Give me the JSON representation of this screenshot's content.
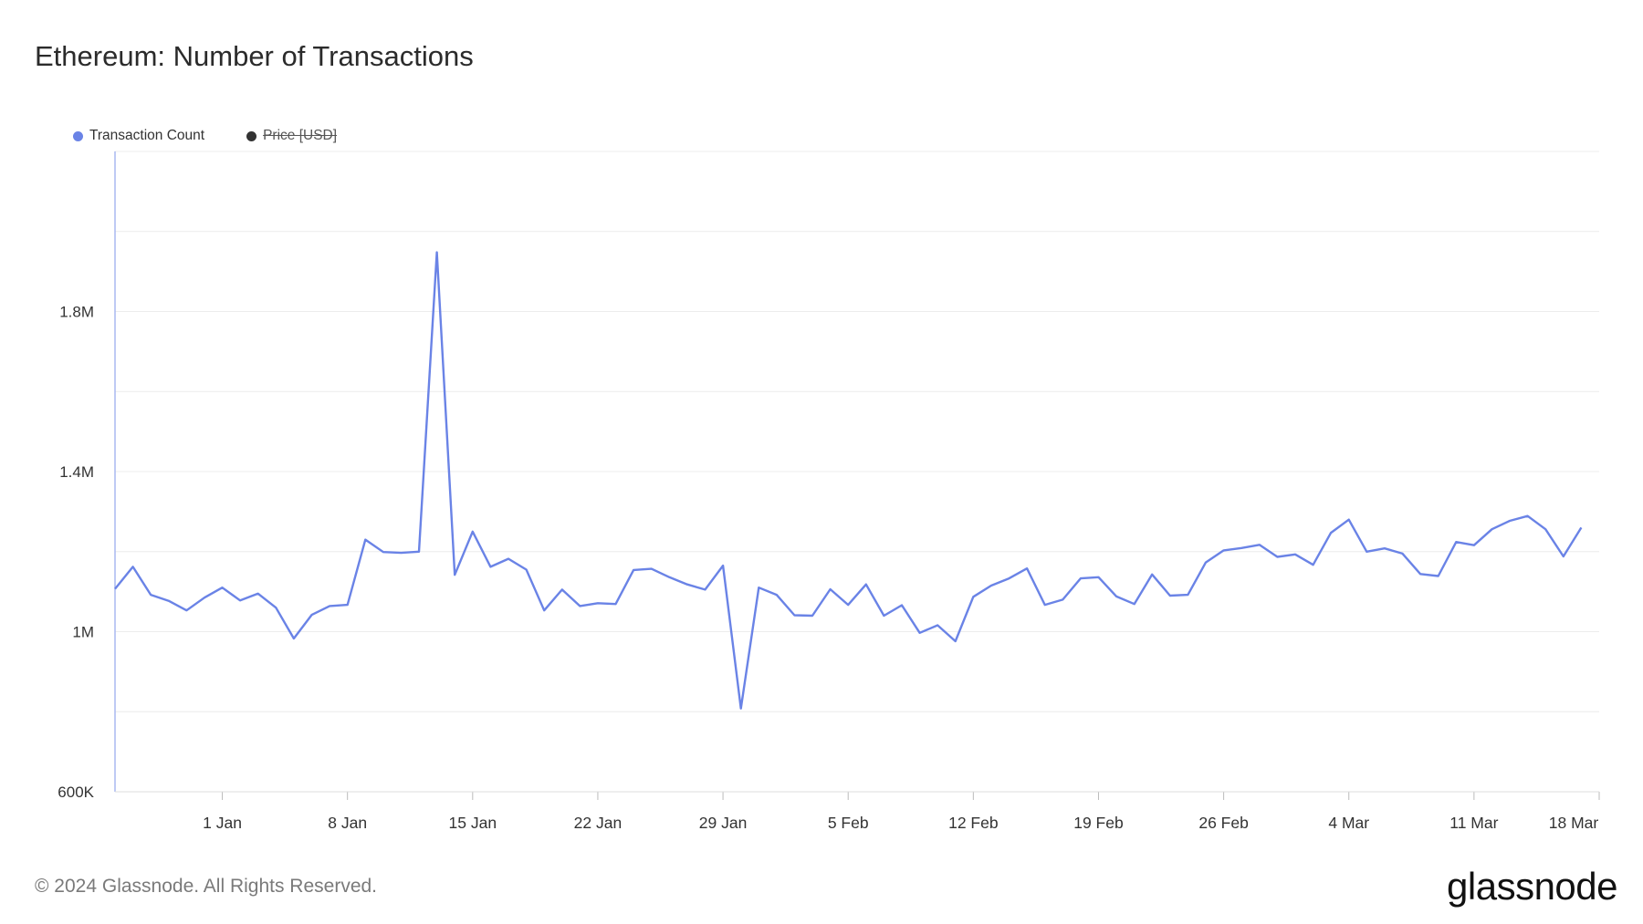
{
  "title": "Ethereum: Number of Transactions",
  "legend": [
    {
      "label": "Transaction Count",
      "color": "#6a83e6",
      "hidden": false
    },
    {
      "label": "Price [USD]",
      "color": "#333333",
      "hidden": true
    }
  ],
  "footer": "© 2024 Glassnode. All Rights Reserved.",
  "brand": "glassnode",
  "chart_data": {
    "type": "line",
    "title": "Ethereum: Number of Transactions",
    "x_start": "2023-12-26",
    "x_interval_days": 1,
    "xlim": [
      "2023-12-26",
      "2024-03-18"
    ],
    "ylim": [
      600000,
      2200000
    ],
    "y_ticks": [
      {
        "value": 600000,
        "label": "600K"
      },
      {
        "value": 1000000,
        "label": "1M"
      },
      {
        "value": 1400000,
        "label": "1.4M"
      },
      {
        "value": 1800000,
        "label": "1.8M"
      }
    ],
    "y_gridlines": [
      600000,
      800000,
      1000000,
      1200000,
      1400000,
      1600000,
      1800000,
      2000000,
      2200000
    ],
    "x_ticks": [
      {
        "date": "2024-01-01",
        "label": "1 Jan"
      },
      {
        "date": "2024-01-08",
        "label": "8 Jan"
      },
      {
        "date": "2024-01-15",
        "label": "15 Jan"
      },
      {
        "date": "2024-01-22",
        "label": "22 Jan"
      },
      {
        "date": "2024-01-29",
        "label": "29 Jan"
      },
      {
        "date": "2024-02-05",
        "label": "5 Feb"
      },
      {
        "date": "2024-02-12",
        "label": "12 Feb"
      },
      {
        "date": "2024-02-19",
        "label": "19 Feb"
      },
      {
        "date": "2024-02-26",
        "label": "26 Feb"
      },
      {
        "date": "2024-03-04",
        "label": "4 Mar"
      },
      {
        "date": "2024-03-11",
        "label": "11 Mar"
      },
      {
        "date": "2024-03-18",
        "label": "18 Mar"
      }
    ],
    "grid": true,
    "legend_position": "top-left",
    "series": [
      {
        "name": "Transaction Count",
        "color": "#6a83e6",
        "values": [
          1107000,
          1162000,
          1092000,
          1077000,
          1053000,
          1085000,
          1110000,
          1078000,
          1095000,
          1060000,
          983000,
          1042000,
          1064000,
          1067000,
          1230000,
          1199000,
          1197000,
          1200000,
          1948000,
          1142000,
          1250000,
          1162000,
          1182000,
          1155000,
          1053000,
          1105000,
          1064000,
          1071000,
          1069000,
          1154000,
          1157000,
          1136000,
          1118000,
          1105000,
          1165000,
          808000,
          1110000,
          1092000,
          1041000,
          1040000,
          1106000,
          1067000,
          1118000,
          1040000,
          1066000,
          997000,
          1016000,
          976000,
          1087000,
          1115000,
          1133000,
          1158000,
          1067000,
          1080000,
          1133000,
          1136000,
          1088000,
          1069000,
          1143000,
          1090000,
          1092000,
          1173000,
          1203000,
          1209000,
          1217000,
          1187000,
          1193000,
          1167000,
          1247000,
          1280000,
          1200000,
          1208000,
          1195000,
          1144000,
          1139000,
          1224000,
          1216000,
          1256000,
          1277000,
          1289000,
          1256000,
          1188000,
          1260000
        ]
      }
    ]
  }
}
